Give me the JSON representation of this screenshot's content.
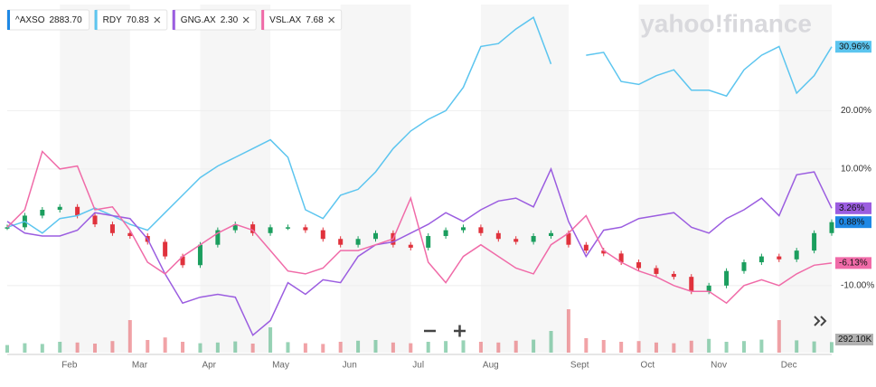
{
  "logo": "yahoo!finance",
  "chart_data": {
    "type": "line",
    "categories": [
      null,
      null,
      null,
      "Feb",
      null,
      null,
      null,
      "Mar",
      null,
      null,
      null,
      "Apr",
      null,
      null,
      null,
      "May",
      null,
      null,
      null,
      "Jun",
      null,
      null,
      null,
      "Jul",
      null,
      null,
      null,
      "Aug",
      null,
      null,
      null,
      null,
      "Sept",
      null,
      null,
      null,
      "Oct",
      null,
      null,
      null,
      "Nov",
      null,
      null,
      null,
      "Dec",
      null,
      null,
      null
    ],
    "ylim": [
      -21.5,
      38.2
    ],
    "yticks": [
      {
        "value": 20,
        "label": "20.00%"
      },
      {
        "value": 10,
        "label": "10.00%"
      },
      {
        "value": -10,
        "label": "-10.00%"
      }
    ],
    "series": [
      {
        "name": "^AXSO",
        "price": {
          "value": 2883.7,
          "label": "2883.70"
        },
        "color": "#1e88e5",
        "style": "candle",
        "up_color": "#1b9e5e",
        "down_color": "#e0323c",
        "values": [
          0,
          2,
          3,
          3.5,
          2,
          0.5,
          -1,
          -1.5,
          -2.5,
          -5,
          -6.5,
          -3,
          -0.5,
          0.5,
          -1,
          0,
          0,
          -0.5,
          -2,
          -3,
          -2,
          -1,
          -3,
          -3.5,
          -1.5,
          -0.5,
          0,
          -1,
          -2,
          -2.5,
          -1.5,
          -1,
          -3,
          -4,
          -4.5,
          -6,
          -7,
          -8,
          -8.5,
          -11,
          -10,
          -7.5,
          -6,
          -5,
          -5.5,
          -4,
          -1,
          0.88
        ],
        "value_labels": [
          null,
          null,
          null,
          null,
          null,
          null,
          null,
          null,
          null,
          null,
          null,
          null,
          null,
          null,
          null,
          null,
          null,
          null,
          null,
          null,
          null,
          null,
          null,
          null,
          null,
          null,
          null,
          null,
          null,
          null,
          null,
          null,
          null,
          null,
          null,
          null,
          null,
          null,
          null,
          null,
          null,
          null,
          null,
          null,
          null,
          null,
          null,
          "0.88%"
        ]
      },
      {
        "name": "RDY",
        "price": {
          "value": 70.83,
          "label": "70.83"
        },
        "color": "#5cc5ef",
        "style": "line",
        "values": [
          0,
          1,
          -1,
          1.5,
          2,
          3.3,
          2,
          0.5,
          -0.5,
          2.5,
          5.5,
          8.5,
          10.5,
          12,
          13.5,
          15,
          12,
          3,
          1.5,
          5.5,
          6.5,
          9.5,
          13.5,
          16.5,
          18.5,
          20,
          24,
          31,
          31.5,
          34,
          36,
          28,
          null,
          29.5,
          30,
          25,
          24.5,
          26,
          27,
          23.5,
          23.5,
          22.5,
          27,
          29.5,
          31,
          23,
          26,
          30.96
        ],
        "value_labels": [
          null,
          null,
          null,
          null,
          null,
          null,
          null,
          null,
          null,
          null,
          null,
          null,
          null,
          null,
          null,
          null,
          null,
          null,
          null,
          null,
          null,
          null,
          null,
          null,
          null,
          null,
          null,
          null,
          null,
          null,
          null,
          null,
          null,
          null,
          null,
          null,
          null,
          null,
          null,
          null,
          null,
          null,
          null,
          null,
          null,
          null,
          null,
          "30.96%"
        ]
      },
      {
        "name": "GNG.AX",
        "price": {
          "value": 2.3,
          "label": "2.30"
        },
        "color": "#9b5de0",
        "style": "line",
        "values": [
          1,
          -1,
          -1.5,
          -1.5,
          -0.5,
          2.5,
          2,
          1.5,
          -2,
          -8,
          -13,
          -12,
          -11.5,
          -12,
          -18.5,
          -16,
          -9.5,
          -11.5,
          -9,
          -9.5,
          -5,
          -3,
          -2.5,
          -1,
          0.5,
          2.5,
          1,
          3,
          4.5,
          5,
          3.5,
          10,
          1,
          -5,
          -0.5,
          0,
          1.5,
          2,
          2.5,
          0,
          -1,
          1.5,
          3,
          5,
          2,
          9,
          9.5,
          3.26
        ],
        "value_labels": [
          null,
          null,
          null,
          null,
          null,
          null,
          null,
          null,
          null,
          null,
          null,
          null,
          null,
          null,
          null,
          null,
          null,
          null,
          null,
          null,
          null,
          null,
          null,
          null,
          null,
          null,
          null,
          null,
          null,
          null,
          null,
          null,
          null,
          null,
          null,
          null,
          null,
          null,
          null,
          null,
          null,
          null,
          null,
          null,
          null,
          null,
          null,
          "3.26%"
        ]
      },
      {
        "name": "VSL.AX",
        "price": {
          "value": 7.68,
          "label": "7.68"
        },
        "color": "#f06ba8",
        "style": "line",
        "values": [
          0,
          3,
          13,
          10,
          10.5,
          3,
          3.5,
          -0.5,
          -6,
          -8,
          -5,
          -3,
          -1,
          0.5,
          -0.5,
          -4,
          -7.5,
          -8,
          -7,
          -4,
          -4,
          -3,
          -2,
          5,
          -6,
          -9.5,
          -5,
          -3,
          -5,
          -7,
          -8,
          -3,
          -1,
          2,
          -4,
          -6,
          -7.5,
          -8.5,
          -10,
          -11,
          -11,
          -13,
          -10,
          -9,
          -10,
          -8,
          -6.5,
          -6.13
        ],
        "value_labels": [
          null,
          null,
          null,
          null,
          null,
          null,
          null,
          null,
          null,
          null,
          null,
          null,
          null,
          null,
          null,
          null,
          null,
          null,
          null,
          null,
          null,
          null,
          null,
          null,
          null,
          null,
          null,
          null,
          null,
          null,
          null,
          null,
          null,
          null,
          null,
          null,
          null,
          null,
          null,
          null,
          null,
          null,
          null,
          null,
          null,
          null,
          null,
          "-6.13%"
        ]
      }
    ],
    "volume": {
      "ylim": [
        0,
        1500
      ],
      "color": "#b0b0b0",
      "values": [
        210,
        260,
        240,
        300,
        280,
        250,
        320,
        900,
        350,
        420,
        300,
        260,
        280,
        310,
        250,
        700,
        290,
        260,
        240,
        300,
        330,
        350,
        280,
        260,
        300,
        320,
        340,
        300,
        280,
        330,
        360,
        600,
        1200,
        400,
        350,
        300,
        320,
        280,
        260,
        330,
        380,
        300,
        320,
        360,
        900,
        340,
        310,
        292.1
      ],
      "value_labels": [
        null,
        null,
        null,
        null,
        null,
        null,
        null,
        null,
        null,
        null,
        null,
        null,
        null,
        null,
        null,
        null,
        null,
        null,
        null,
        null,
        null,
        null,
        null,
        null,
        null,
        null,
        null,
        null,
        null,
        null,
        null,
        null,
        null,
        null,
        null,
        null,
        null,
        null,
        null,
        null,
        null,
        null,
        null,
        null,
        null,
        null,
        null,
        "292.10K"
      ]
    }
  }
}
